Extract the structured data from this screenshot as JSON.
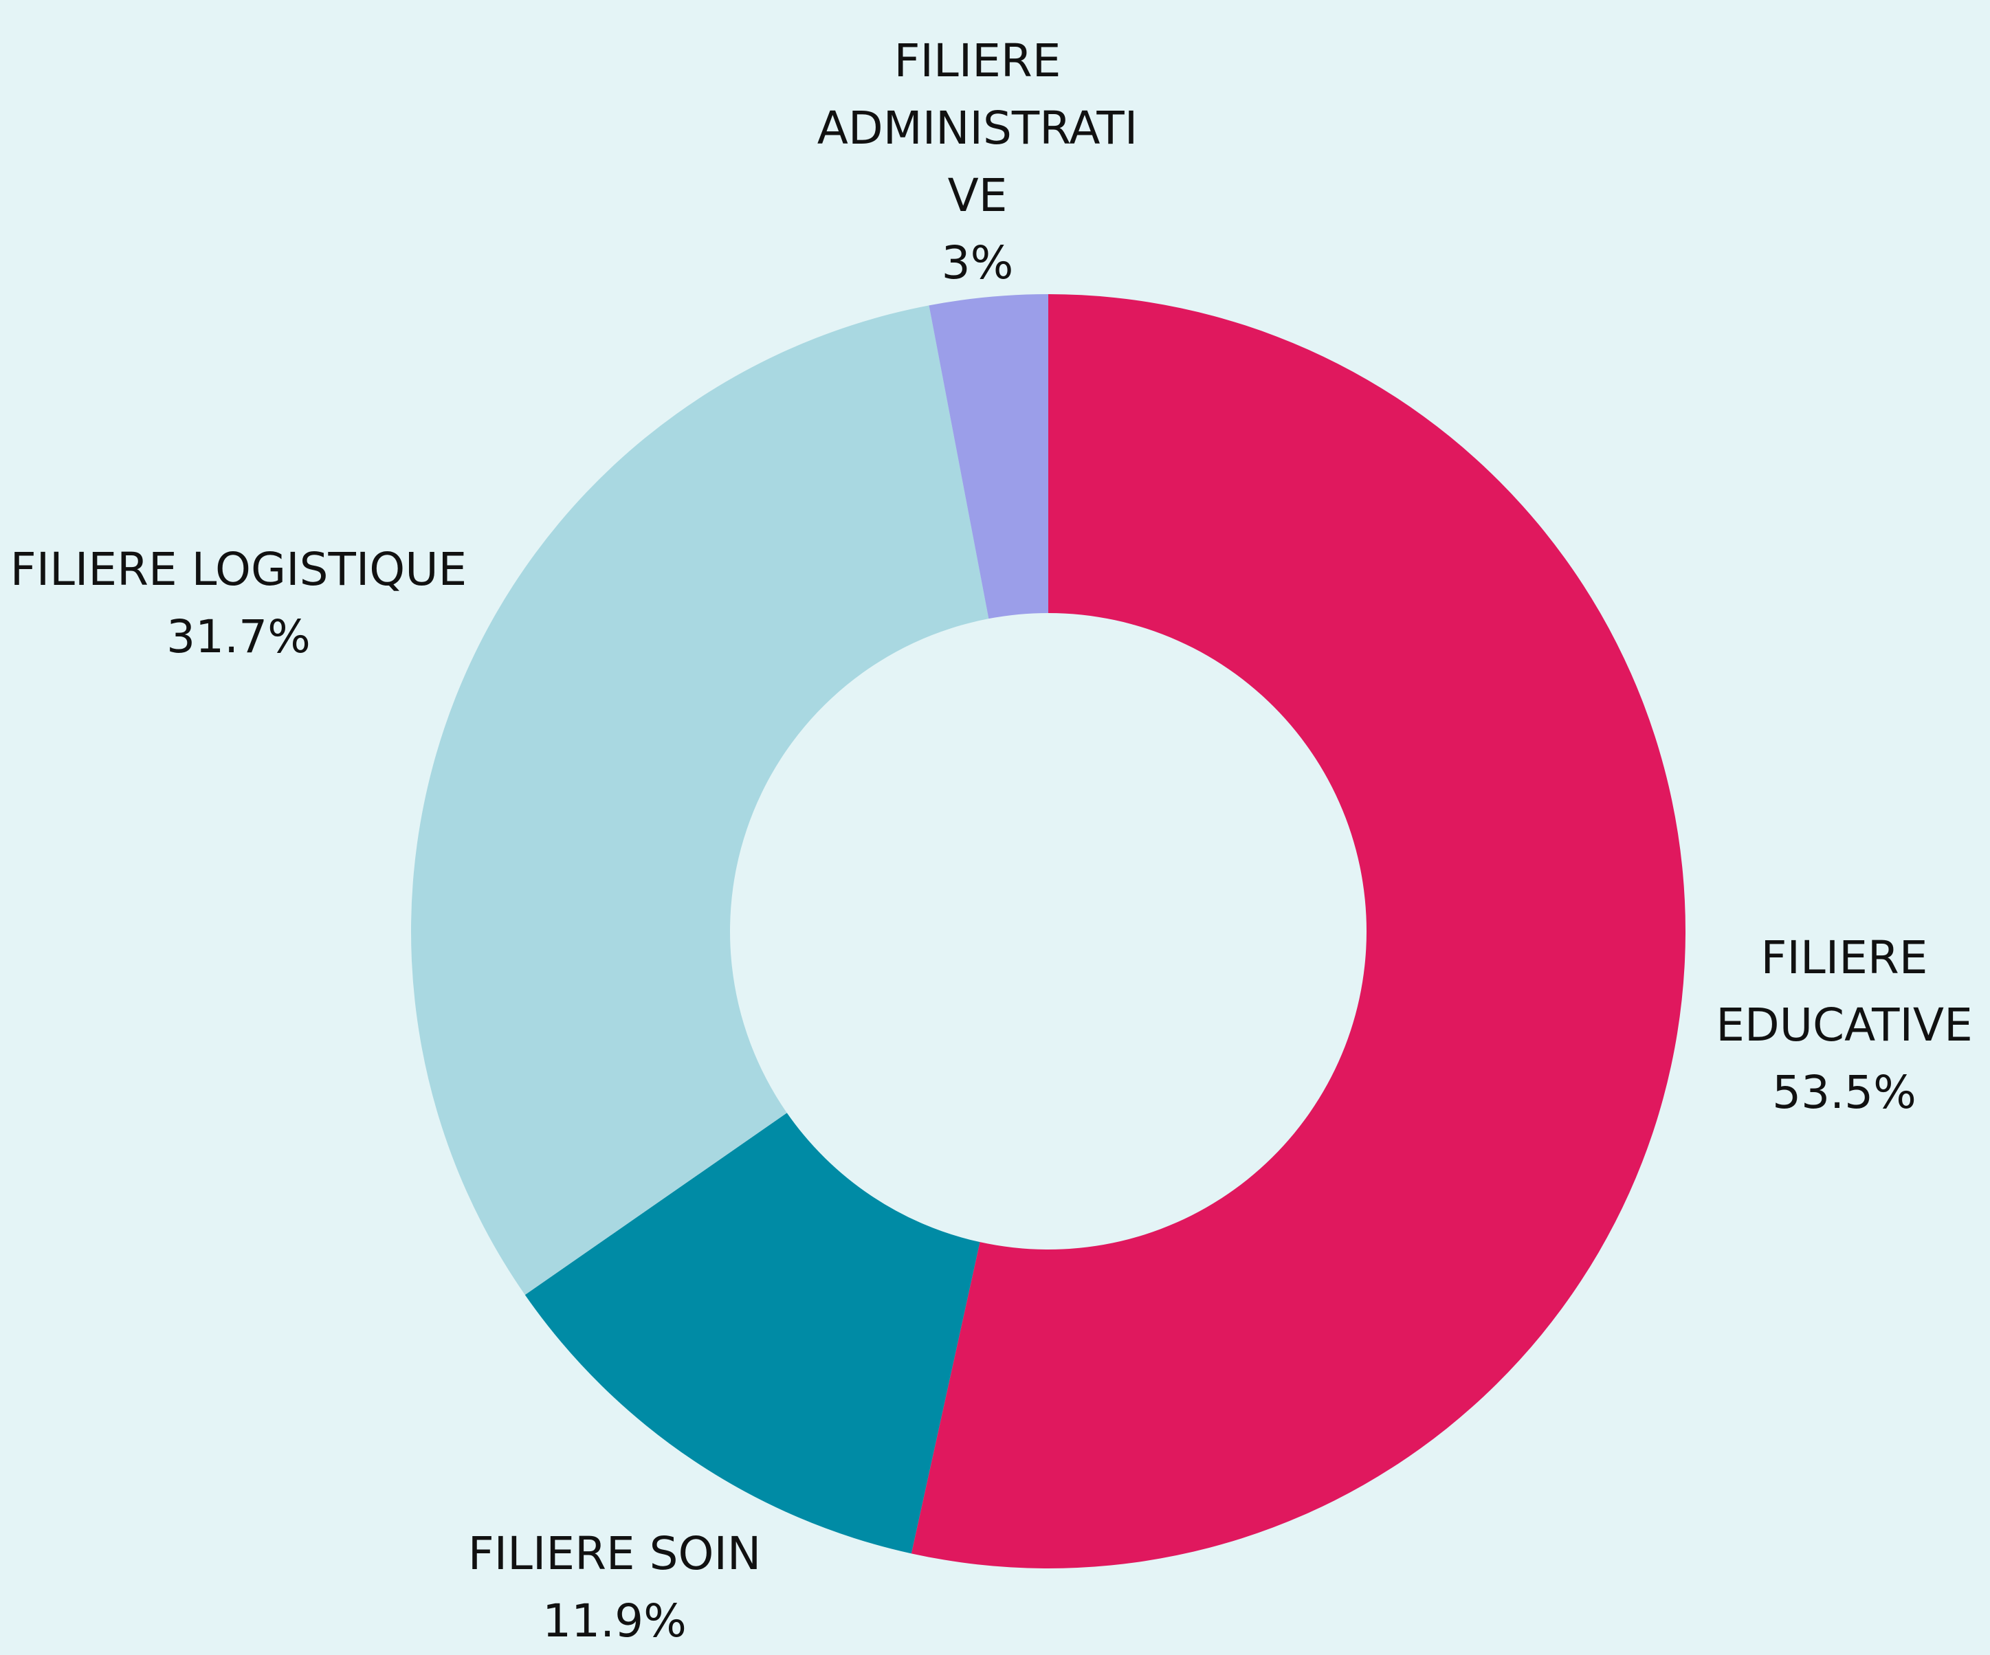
{
  "chart_data": {
    "type": "donut",
    "categories": [
      "FILIERE EDUCATIVE",
      "FILIERE SOIN",
      "FILIERE LOGISTIQUE",
      "FILIERE ADMINISTRATIVE"
    ],
    "values": [
      53.5,
      11.9,
      31.7,
      3
    ],
    "value_labels": [
      "53.5%",
      "11.9%",
      "31.7%",
      "3%"
    ],
    "colors": [
      "#e0185e",
      "#008ba5",
      "#a9d8e1",
      "#9b9ee9"
    ]
  }
}
